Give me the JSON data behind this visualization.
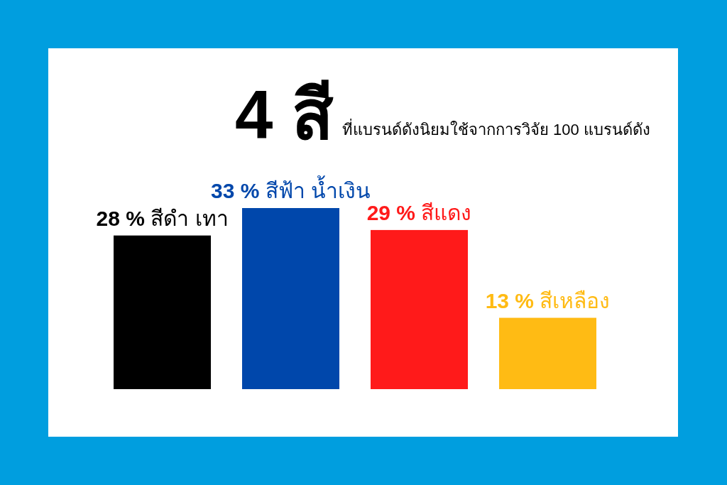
{
  "chart_data": {
    "type": "bar",
    "title": "4 สี",
    "subtitle": "ที่แบรนด์ดังนิยมใช้จากการวิจัย 100 แบรนด์ดัง",
    "categories": [
      "สีดำ เทา",
      "สีฟ้า น้ำเงิน",
      "สีแดง",
      "สีเหลือง"
    ],
    "values": [
      28,
      33,
      29,
      13
    ],
    "colors": [
      "#000000",
      "#0047ab",
      "#ff1a1a",
      "#ffbb14"
    ],
    "value_labels": [
      "28 %",
      "33 %",
      "29 %",
      "13 %"
    ]
  }
}
